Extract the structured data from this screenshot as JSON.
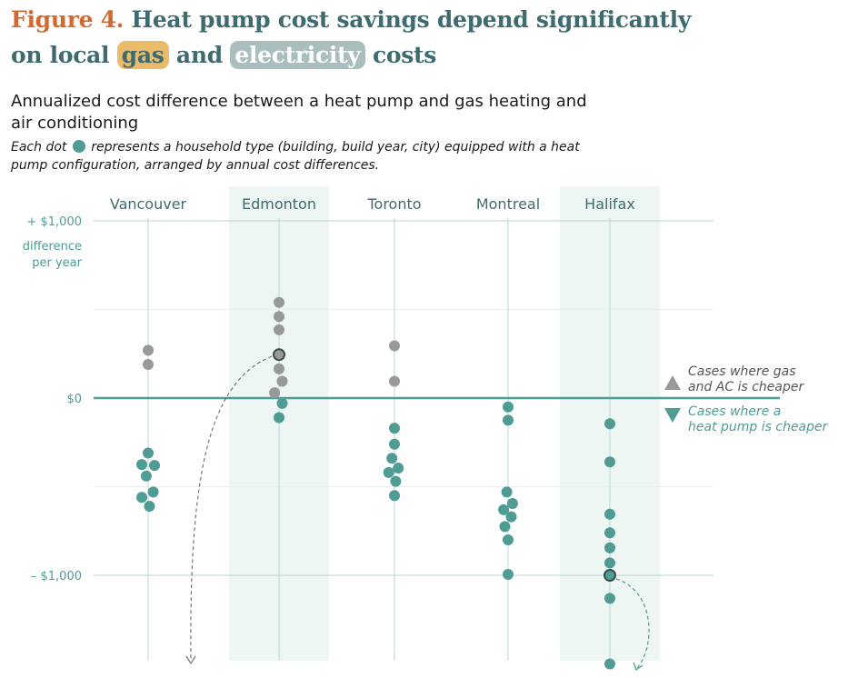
{
  "title": {
    "figure": "Figure 4.",
    "part1": "Heat pump cost savings depend significantly",
    "part2": "on local",
    "gas": "gas",
    "and": "and",
    "electricity": "electricity",
    "part3": "costs"
  },
  "subtitle": "Annualized cost difference between a heat pump and gas heating and air conditioning",
  "note": {
    "before": "Each dot",
    "after": "represents a household type (building, build year, city) equipped with a heat pump configuration, arranged by annual cost differences."
  },
  "colors": {
    "gas_cheaper": "#999999",
    "heat_pump_cheaper": "#4e9c94",
    "axis": "#4e9c94",
    "label": "#3d6b6f",
    "band": "#eef6f4"
  },
  "chart_data": {
    "type": "scatter",
    "ylim": [
      -1400,
      1000
    ],
    "yticks": [
      {
        "value": 1000,
        "label": "+ $1,000"
      },
      {
        "value": 0,
        "label": "$0"
      },
      {
        "value": -1000,
        "label": "– $1,000"
      }
    ],
    "ylabel": [
      "difference",
      "per year"
    ],
    "shaded_cities": [
      "Edmonton",
      "Halifax"
    ],
    "legend": {
      "up": [
        "Cases where gas",
        "and AC is cheaper"
      ],
      "down": [
        "Cases where a",
        "heat pump is cheaper"
      ]
    },
    "cities": [
      {
        "name": "Vancouver",
        "points": [
          {
            "offset": 0,
            "y": 270
          },
          {
            "offset": 0,
            "y": 190
          },
          {
            "offset": 0,
            "y": -310
          },
          {
            "offset": -1,
            "y": -375
          },
          {
            "offset": 1,
            "y": -380
          },
          {
            "offset": -0.3,
            "y": -440
          },
          {
            "offset": 0.8,
            "y": -530
          },
          {
            "offset": -1,
            "y": -560
          },
          {
            "offset": 0.2,
            "y": -610
          }
        ]
      },
      {
        "name": "Edmonton",
        "points": [
          {
            "offset": 0,
            "y": 540
          },
          {
            "offset": 0,
            "y": 460
          },
          {
            "offset": 0,
            "y": 385
          },
          {
            "offset": 0,
            "y": 245,
            "highlight": true
          },
          {
            "offset": 0,
            "y": 165
          },
          {
            "offset": 0.5,
            "y": 95
          },
          {
            "offset": -0.7,
            "y": 30
          },
          {
            "offset": 0.5,
            "y": -30
          },
          {
            "offset": 0,
            "y": -110
          }
        ]
      },
      {
        "name": "Toronto",
        "points": [
          {
            "offset": 0,
            "y": 295
          },
          {
            "offset": 0,
            "y": 95
          },
          {
            "offset": 0,
            "y": -170
          },
          {
            "offset": 0,
            "y": -260
          },
          {
            "offset": -0.4,
            "y": -340
          },
          {
            "offset": 0.6,
            "y": -395
          },
          {
            "offset": -0.9,
            "y": -420
          },
          {
            "offset": 0.2,
            "y": -470
          },
          {
            "offset": 0,
            "y": -550
          }
        ]
      },
      {
        "name": "Montreal",
        "points": [
          {
            "offset": 0,
            "y": -50
          },
          {
            "offset": 0,
            "y": -125
          },
          {
            "offset": -0.2,
            "y": -530
          },
          {
            "offset": 0.7,
            "y": -595
          },
          {
            "offset": -0.7,
            "y": -630
          },
          {
            "offset": 0.5,
            "y": -670
          },
          {
            "offset": -0.5,
            "y": -725
          },
          {
            "offset": 0,
            "y": -800
          },
          {
            "offset": 0,
            "y": -995
          }
        ]
      },
      {
        "name": "Halifax",
        "points": [
          {
            "offset": 0,
            "y": -145
          },
          {
            "offset": 0,
            "y": -360
          },
          {
            "offset": 0,
            "y": -655
          },
          {
            "offset": 0,
            "y": -760
          },
          {
            "offset": 0,
            "y": -845
          },
          {
            "offset": 0,
            "y": -930
          },
          {
            "offset": 0,
            "y": -1000,
            "highlight": true
          },
          {
            "offset": 0,
            "y": -1130
          },
          {
            "offset": 0,
            "y": -1500
          }
        ]
      }
    ]
  }
}
